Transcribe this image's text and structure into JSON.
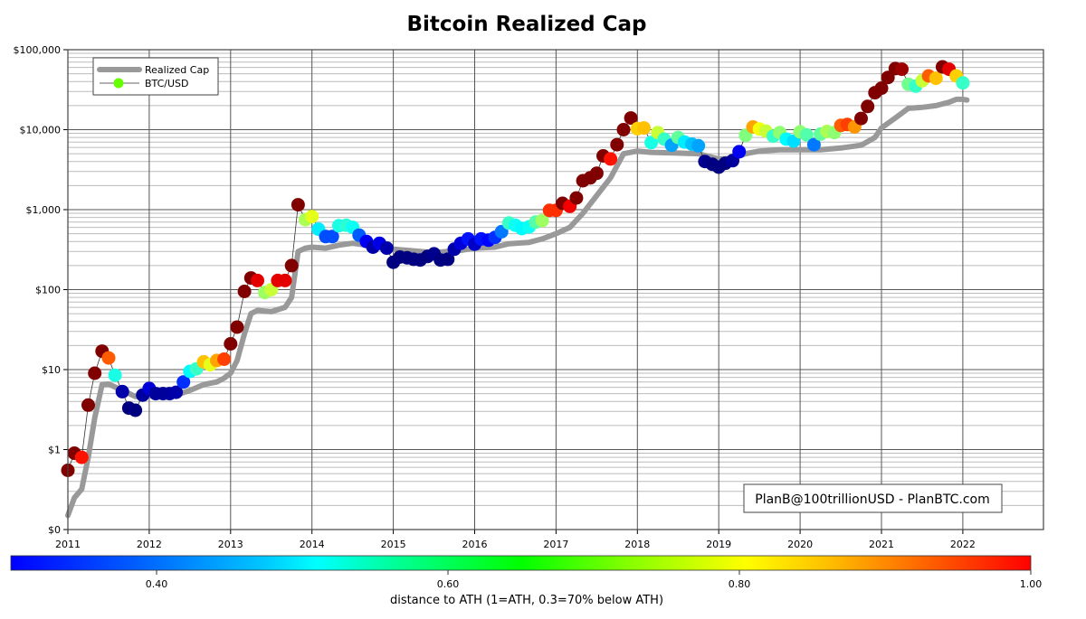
{
  "chart_data": {
    "type": "scatter",
    "title": "Bitcoin Realized Cap",
    "xlabel": "",
    "ylabel": "",
    "yscale": "log",
    "ylim": [
      0.1,
      100000
    ],
    "xlim": [
      2011,
      2023.0
    ],
    "y_tick_labels": [
      "$0",
      "$1",
      "$10",
      "$100",
      "$1,000",
      "$10,000",
      "$100,000"
    ],
    "y_tick_values": [
      0.1,
      1,
      10,
      100,
      1000,
      10000,
      100000
    ],
    "x_tick_labels": [
      "2011",
      "2012",
      "2013",
      "2014",
      "2015",
      "2016",
      "2017",
      "2018",
      "2019",
      "2020",
      "2021",
      "2022"
    ],
    "grid": true,
    "legend": {
      "position": "upper left",
      "entries": [
        {
          "label": "Realized Cap",
          "style": "thick gray line",
          "color": "#999999"
        },
        {
          "label": "BTC/USD",
          "style": "line with circle marker",
          "color": "#66ff00"
        }
      ]
    },
    "annotation": "PlanB@100trillionUSD  -  PlanBTC.com",
    "colorbar": {
      "label": "distance to ATH (1=ATH, 0.3=70% below ATH)",
      "colormap": "jet",
      "range": [
        0.3,
        1.0
      ],
      "tick_labels": [
        "0.40",
        "0.60",
        "0.80",
        "1.00"
      ],
      "tick_values": [
        0.4,
        0.6,
        0.8,
        1.0
      ]
    },
    "series": [
      {
        "name": "Realized Cap",
        "type": "line",
        "points": [
          [
            2011.0,
            0.15
          ],
          [
            2011.08,
            0.25
          ],
          [
            2011.17,
            0.32
          ],
          [
            2011.25,
            0.8
          ],
          [
            2011.33,
            2.5
          ],
          [
            2011.42,
            6.5
          ],
          [
            2011.5,
            6.6
          ],
          [
            2011.67,
            5.5
          ],
          [
            2011.83,
            4.6
          ],
          [
            2012.0,
            4.7
          ],
          [
            2012.17,
            4.8
          ],
          [
            2012.33,
            4.8
          ],
          [
            2012.5,
            5.5
          ],
          [
            2012.67,
            6.5
          ],
          [
            2012.83,
            7.0
          ],
          [
            2012.92,
            7.8
          ],
          [
            2013.0,
            9.0
          ],
          [
            2013.08,
            13
          ],
          [
            2013.17,
            28
          ],
          [
            2013.25,
            50
          ],
          [
            2013.33,
            55
          ],
          [
            2013.5,
            53
          ],
          [
            2013.67,
            60
          ],
          [
            2013.75,
            80
          ],
          [
            2013.83,
            300
          ],
          [
            2013.92,
            330
          ],
          [
            2014.0,
            340
          ],
          [
            2014.17,
            330
          ],
          [
            2014.33,
            360
          ],
          [
            2014.5,
            380
          ],
          [
            2014.67,
            360
          ],
          [
            2014.83,
            340
          ],
          [
            2015.0,
            320
          ],
          [
            2015.25,
            305
          ],
          [
            2015.5,
            290
          ],
          [
            2015.67,
            300
          ],
          [
            2015.83,
            310
          ],
          [
            2016.0,
            330
          ],
          [
            2016.25,
            340
          ],
          [
            2016.42,
            375
          ],
          [
            2016.67,
            390
          ],
          [
            2016.83,
            430
          ],
          [
            2017.0,
            500
          ],
          [
            2017.17,
            600
          ],
          [
            2017.33,
            900
          ],
          [
            2017.5,
            1500
          ],
          [
            2017.67,
            2500
          ],
          [
            2017.83,
            5000
          ],
          [
            2018.0,
            5400
          ],
          [
            2018.17,
            5200
          ],
          [
            2018.5,
            5100
          ],
          [
            2018.75,
            5000
          ],
          [
            2018.92,
            4500
          ],
          [
            2019.0,
            4300
          ],
          [
            2019.17,
            4400
          ],
          [
            2019.33,
            5000
          ],
          [
            2019.5,
            5400
          ],
          [
            2019.75,
            5600
          ],
          [
            2020.0,
            5600
          ],
          [
            2020.25,
            5600
          ],
          [
            2020.5,
            5900
          ],
          [
            2020.75,
            6400
          ],
          [
            2020.92,
            8000
          ],
          [
            2021.0,
            10500
          ],
          [
            2021.17,
            14000
          ],
          [
            2021.33,
            18500
          ],
          [
            2021.5,
            19000
          ],
          [
            2021.67,
            20000
          ],
          [
            2021.83,
            22000
          ],
          [
            2021.92,
            24000
          ],
          [
            2022.0,
            24000
          ],
          [
            2022.05,
            23500
          ]
        ]
      },
      {
        "name": "BTC/USD",
        "type": "line+marker",
        "points": [
          {
            "x": 2011.0,
            "y": 0.55,
            "ath": 1.0
          },
          {
            "x": 2011.08,
            "y": 0.9,
            "ath": 1.0
          },
          {
            "x": 2011.17,
            "y": 0.8,
            "ath": 0.9
          },
          {
            "x": 2011.25,
            "y": 3.6,
            "ath": 1.0
          },
          {
            "x": 2011.33,
            "y": 9.0,
            "ath": 1.0
          },
          {
            "x": 2011.42,
            "y": 17,
            "ath": 1.0
          },
          {
            "x": 2011.5,
            "y": 14,
            "ath": 0.85
          },
          {
            "x": 2011.58,
            "y": 8.5,
            "ath": 0.58
          },
          {
            "x": 2011.67,
            "y": 5.3,
            "ath": 0.33
          },
          {
            "x": 2011.75,
            "y": 3.3,
            "ath": 0.3
          },
          {
            "x": 2011.83,
            "y": 3.1,
            "ath": 0.3
          },
          {
            "x": 2011.92,
            "y": 4.8,
            "ath": 0.32
          },
          {
            "x": 2012.0,
            "y": 5.8,
            "ath": 0.36
          },
          {
            "x": 2012.08,
            "y": 5.0,
            "ath": 0.32
          },
          {
            "x": 2012.17,
            "y": 5.0,
            "ath": 0.32
          },
          {
            "x": 2012.25,
            "y": 5.0,
            "ath": 0.32
          },
          {
            "x": 2012.33,
            "y": 5.2,
            "ath": 0.33
          },
          {
            "x": 2012.42,
            "y": 7.0,
            "ath": 0.42
          },
          {
            "x": 2012.5,
            "y": 9.5,
            "ath": 0.56
          },
          {
            "x": 2012.58,
            "y": 10.2,
            "ath": 0.6
          },
          {
            "x": 2012.67,
            "y": 12.5,
            "ath": 0.78
          },
          {
            "x": 2012.75,
            "y": 11.5,
            "ath": 0.72
          },
          {
            "x": 2012.83,
            "y": 13,
            "ath": 0.8
          },
          {
            "x": 2012.92,
            "y": 13.5,
            "ath": 0.87
          },
          {
            "x": 2013.0,
            "y": 21,
            "ath": 1.0
          },
          {
            "x": 2013.08,
            "y": 34,
            "ath": 1.0
          },
          {
            "x": 2013.17,
            "y": 95,
            "ath": 1.0
          },
          {
            "x": 2013.25,
            "y": 140,
            "ath": 1.0
          },
          {
            "x": 2013.33,
            "y": 130,
            "ath": 0.93
          },
          {
            "x": 2013.42,
            "y": 92,
            "ath": 0.67
          },
          {
            "x": 2013.5,
            "y": 100,
            "ath": 0.7
          },
          {
            "x": 2013.58,
            "y": 130,
            "ath": 0.93
          },
          {
            "x": 2013.67,
            "y": 130,
            "ath": 0.93
          },
          {
            "x": 2013.75,
            "y": 200,
            "ath": 1.0
          },
          {
            "x": 2013.83,
            "y": 1150,
            "ath": 1.0
          },
          {
            "x": 2013.92,
            "y": 750,
            "ath": 0.68
          },
          {
            "x": 2014.0,
            "y": 820,
            "ath": 0.72
          },
          {
            "x": 2014.08,
            "y": 570,
            "ath": 0.55
          },
          {
            "x": 2014.17,
            "y": 460,
            "ath": 0.44
          },
          {
            "x": 2014.25,
            "y": 460,
            "ath": 0.44
          },
          {
            "x": 2014.33,
            "y": 630,
            "ath": 0.58
          },
          {
            "x": 2014.42,
            "y": 640,
            "ath": 0.59
          },
          {
            "x": 2014.5,
            "y": 600,
            "ath": 0.57
          },
          {
            "x": 2014.58,
            "y": 480,
            "ath": 0.45
          },
          {
            "x": 2014.67,
            "y": 400,
            "ath": 0.38
          },
          {
            "x": 2014.75,
            "y": 340,
            "ath": 0.33
          },
          {
            "x": 2014.83,
            "y": 380,
            "ath": 0.37
          },
          {
            "x": 2014.92,
            "y": 330,
            "ath": 0.33
          },
          {
            "x": 2015.0,
            "y": 220,
            "ath": 0.3
          },
          {
            "x": 2015.08,
            "y": 255,
            "ath": 0.3
          },
          {
            "x": 2015.17,
            "y": 250,
            "ath": 0.3
          },
          {
            "x": 2015.25,
            "y": 240,
            "ath": 0.3
          },
          {
            "x": 2015.33,
            "y": 235,
            "ath": 0.3
          },
          {
            "x": 2015.42,
            "y": 260,
            "ath": 0.3
          },
          {
            "x": 2015.5,
            "y": 280,
            "ath": 0.31
          },
          {
            "x": 2015.58,
            "y": 235,
            "ath": 0.3
          },
          {
            "x": 2015.67,
            "y": 240,
            "ath": 0.3
          },
          {
            "x": 2015.75,
            "y": 320,
            "ath": 0.33
          },
          {
            "x": 2015.83,
            "y": 380,
            "ath": 0.36
          },
          {
            "x": 2015.92,
            "y": 430,
            "ath": 0.4
          },
          {
            "x": 2016.0,
            "y": 370,
            "ath": 0.35
          },
          {
            "x": 2016.08,
            "y": 430,
            "ath": 0.4
          },
          {
            "x": 2016.17,
            "y": 415,
            "ath": 0.39
          },
          {
            "x": 2016.25,
            "y": 450,
            "ath": 0.42
          },
          {
            "x": 2016.33,
            "y": 530,
            "ath": 0.47
          },
          {
            "x": 2016.42,
            "y": 680,
            "ath": 0.6
          },
          {
            "x": 2016.5,
            "y": 640,
            "ath": 0.57
          },
          {
            "x": 2016.58,
            "y": 580,
            "ath": 0.56
          },
          {
            "x": 2016.67,
            "y": 610,
            "ath": 0.57
          },
          {
            "x": 2016.75,
            "y": 700,
            "ath": 0.62
          },
          {
            "x": 2016.83,
            "y": 730,
            "ath": 0.67
          },
          {
            "x": 2016.92,
            "y": 980,
            "ath": 0.88
          },
          {
            "x": 2017.0,
            "y": 980,
            "ath": 0.88
          },
          {
            "x": 2017.08,
            "y": 1200,
            "ath": 1.0
          },
          {
            "x": 2017.17,
            "y": 1100,
            "ath": 0.92
          },
          {
            "x": 2017.25,
            "y": 1400,
            "ath": 1.0
          },
          {
            "x": 2017.33,
            "y": 2300,
            "ath": 1.0
          },
          {
            "x": 2017.42,
            "y": 2500,
            "ath": 1.0
          },
          {
            "x": 2017.5,
            "y": 2850,
            "ath": 1.0
          },
          {
            "x": 2017.58,
            "y": 4700,
            "ath": 1.0
          },
          {
            "x": 2017.67,
            "y": 4300,
            "ath": 0.9
          },
          {
            "x": 2017.75,
            "y": 6500,
            "ath": 1.0
          },
          {
            "x": 2017.83,
            "y": 10000,
            "ath": 1.0
          },
          {
            "x": 2017.92,
            "y": 14000,
            "ath": 1.0
          },
          {
            "x": 2018.0,
            "y": 10300,
            "ath": 0.77
          },
          {
            "x": 2018.08,
            "y": 10500,
            "ath": 0.78
          },
          {
            "x": 2018.17,
            "y": 6900,
            "ath": 0.58
          },
          {
            "x": 2018.25,
            "y": 9200,
            "ath": 0.7
          },
          {
            "x": 2018.33,
            "y": 7600,
            "ath": 0.6
          },
          {
            "x": 2018.42,
            "y": 6400,
            "ath": 0.5
          },
          {
            "x": 2018.5,
            "y": 8000,
            "ath": 0.63
          },
          {
            "x": 2018.58,
            "y": 7000,
            "ath": 0.55
          },
          {
            "x": 2018.67,
            "y": 6600,
            "ath": 0.52
          },
          {
            "x": 2018.75,
            "y": 6300,
            "ath": 0.5
          },
          {
            "x": 2018.83,
            "y": 4000,
            "ath": 0.31
          },
          {
            "x": 2018.92,
            "y": 3700,
            "ath": 0.3
          },
          {
            "x": 2019.0,
            "y": 3400,
            "ath": 0.3
          },
          {
            "x": 2019.08,
            "y": 3800,
            "ath": 0.3
          },
          {
            "x": 2019.17,
            "y": 4100,
            "ath": 0.32
          },
          {
            "x": 2019.25,
            "y": 5300,
            "ath": 0.38
          },
          {
            "x": 2019.33,
            "y": 8500,
            "ath": 0.65
          },
          {
            "x": 2019.42,
            "y": 10800,
            "ath": 0.8
          },
          {
            "x": 2019.5,
            "y": 10200,
            "ath": 0.73
          },
          {
            "x": 2019.58,
            "y": 9600,
            "ath": 0.7
          },
          {
            "x": 2019.67,
            "y": 8300,
            "ath": 0.6
          },
          {
            "x": 2019.75,
            "y": 9200,
            "ath": 0.66
          },
          {
            "x": 2019.83,
            "y": 7600,
            "ath": 0.56
          },
          {
            "x": 2019.92,
            "y": 7200,
            "ath": 0.54
          },
          {
            "x": 2020.0,
            "y": 9400,
            "ath": 0.66
          },
          {
            "x": 2020.08,
            "y": 8600,
            "ath": 0.62
          },
          {
            "x": 2020.17,
            "y": 6500,
            "ath": 0.47
          },
          {
            "x": 2020.25,
            "y": 8800,
            "ath": 0.63
          },
          {
            "x": 2020.33,
            "y": 9500,
            "ath": 0.68
          },
          {
            "x": 2020.42,
            "y": 9200,
            "ath": 0.66
          },
          {
            "x": 2020.5,
            "y": 11300,
            "ath": 0.85
          },
          {
            "x": 2020.58,
            "y": 11600,
            "ath": 0.87
          },
          {
            "x": 2020.67,
            "y": 10800,
            "ath": 0.81
          },
          {
            "x": 2020.75,
            "y": 13800,
            "ath": 1.0
          },
          {
            "x": 2020.83,
            "y": 19500,
            "ath": 1.0
          },
          {
            "x": 2020.92,
            "y": 29000,
            "ath": 1.0
          },
          {
            "x": 2021.0,
            "y": 33000,
            "ath": 1.0
          },
          {
            "x": 2021.08,
            "y": 45000,
            "ath": 1.0
          },
          {
            "x": 2021.17,
            "y": 58000,
            "ath": 1.0
          },
          {
            "x": 2021.25,
            "y": 57000,
            "ath": 0.98
          },
          {
            "x": 2021.33,
            "y": 37000,
            "ath": 0.64
          },
          {
            "x": 2021.42,
            "y": 35000,
            "ath": 0.6
          },
          {
            "x": 2021.5,
            "y": 41000,
            "ath": 0.7
          },
          {
            "x": 2021.58,
            "y": 47000,
            "ath": 0.85
          },
          {
            "x": 2021.67,
            "y": 44000,
            "ath": 0.78
          },
          {
            "x": 2021.75,
            "y": 61000,
            "ath": 1.0
          },
          {
            "x": 2021.83,
            "y": 57000,
            "ath": 0.93
          },
          {
            "x": 2021.92,
            "y": 47000,
            "ath": 0.77
          },
          {
            "x": 2022.0,
            "y": 38500,
            "ath": 0.6
          }
        ]
      }
    ]
  },
  "ui": {
    "title": "Bitcoin Realized Cap",
    "legend": {
      "realized_label": "Realized Cap",
      "btc_label": "BTC/USD"
    },
    "credit": "PlanB@100trillionUSD  -  PlanBTC.com",
    "colorbar_label": "distance to ATH (1=ATH, 0.3=70% below ATH)",
    "colors": {
      "realized": "#999999",
      "frame": "#444444",
      "grid_major": "#555555",
      "grid_minor": "#bbbbbb",
      "connector": "#333333",
      "legend_marker": "#66ff00"
    }
  }
}
